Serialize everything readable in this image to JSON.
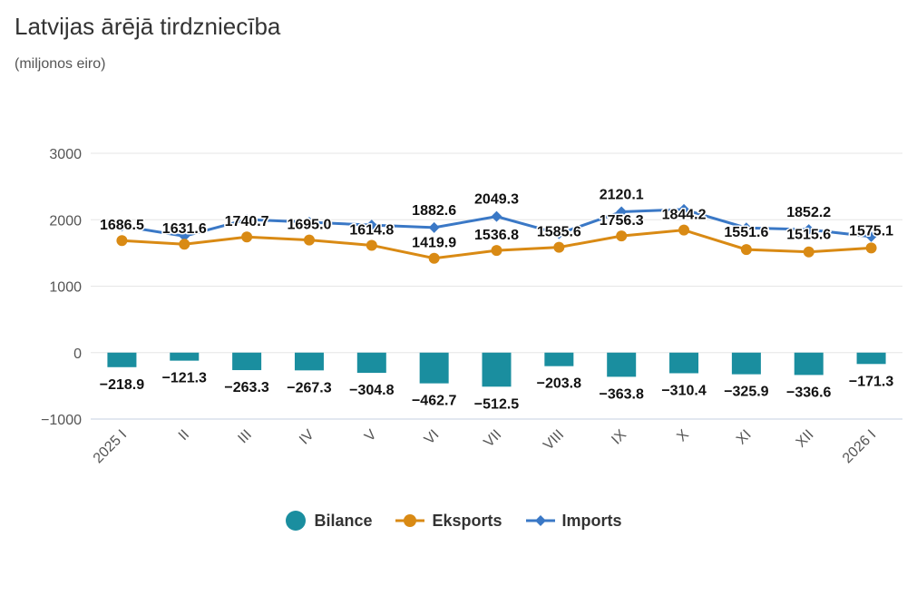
{
  "chart_data": {
    "type": "bar+line",
    "title": "Latvijas ārējā tirdzniecība",
    "subtitle": "(miljonos eiro)",
    "categories": [
      "2025 I",
      "II",
      "III",
      "IV",
      "V",
      "VI",
      "VII",
      "VIII",
      "IX",
      "X",
      "XI",
      "XII",
      "2026 I"
    ],
    "y_ticks": [
      "3000",
      "2000",
      "1000",
      "0",
      "−1000"
    ],
    "ylim": [
      -1000,
      3000
    ],
    "series": [
      {
        "name": "Bilance",
        "type": "bar",
        "color": "#1a8e9f",
        "values": [
          -218.9,
          -121.3,
          -263.3,
          -267.3,
          -304.8,
          -462.7,
          -512.5,
          -203.8,
          -363.8,
          -310.4,
          -325.9,
          -336.6,
          -171.3
        ],
        "labels": [
          "−218.9",
          "−121.3",
          "−263.3",
          "−267.3",
          "−304.8",
          "−462.7",
          "−512.5",
          "−203.8",
          "−363.8",
          "−310.4",
          "−325.9",
          "−336.6",
          "−171.3"
        ]
      },
      {
        "name": "Eksports",
        "type": "line",
        "color": "#d98a14",
        "values": [
          1686.5,
          1631.6,
          1740.7,
          1695.0,
          1614.8,
          1419.9,
          1536.8,
          1585.6,
          1756.3,
          1844.2,
          1551.6,
          1515.6,
          1575.1
        ],
        "labels": [
          "1686.5",
          "1631.6",
          "1740.7",
          "1695.0",
          "1614.8",
          "1419.9",
          "1536.8",
          "1585.6",
          "1756.3",
          "1844.2",
          "1551.6",
          "1515.6",
          "1575.1"
        ]
      },
      {
        "name": "Imports",
        "type": "line",
        "color": "#3a78c6",
        "values": [
          1905.4,
          1752.9,
          2004.0,
          1962.3,
          1919.6,
          1882.6,
          2049.3,
          1789.4,
          2120.1,
          2154.6,
          1877.5,
          1852.2,
          1746.4
        ],
        "labels": [
          "",
          "",
          "",
          "",
          "",
          "1882.6",
          "2049.3",
          "",
          "2120.1",
          "",
          "",
          "1852.2",
          ""
        ]
      }
    ],
    "legend": [
      "Bilance",
      "Eksports",
      "Imports"
    ],
    "legend_position": "bottom-center"
  }
}
